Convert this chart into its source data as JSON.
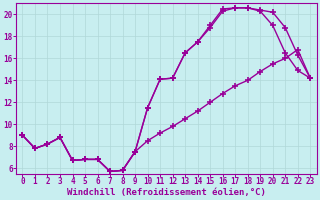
{
  "xlabel": "Windchill (Refroidissement éolien,°C)",
  "bg_color": "#c8eef0",
  "line_color": "#990099",
  "grid_color": "#b0d8d8",
  "xlim": [
    -0.5,
    23.5
  ],
  "ylim": [
    5.5,
    21.0
  ],
  "xticks": [
    0,
    1,
    2,
    3,
    4,
    5,
    6,
    7,
    8,
    9,
    10,
    11,
    12,
    13,
    14,
    15,
    16,
    17,
    18,
    19,
    20,
    21,
    22,
    23
  ],
  "yticks": [
    6,
    8,
    10,
    12,
    14,
    16,
    18,
    20
  ],
  "line1_x": [
    0,
    1,
    2,
    3,
    4,
    5,
    6,
    7,
    8,
    9,
    10,
    11,
    12,
    13,
    14,
    15,
    16,
    17,
    18,
    19,
    20,
    21,
    22,
    23
  ],
  "line1_y": [
    9.0,
    7.8,
    8.2,
    8.8,
    6.7,
    6.8,
    6.8,
    5.7,
    5.8,
    7.5,
    11.5,
    14.1,
    14.2,
    16.5,
    17.5,
    18.8,
    20.3,
    20.6,
    20.6,
    20.3,
    19.0,
    16.5,
    14.9,
    14.2
  ],
  "line2_x": [
    0,
    1,
    2,
    3,
    4,
    5,
    6,
    7,
    8,
    9,
    10,
    11,
    12,
    13,
    14,
    15,
    16,
    17,
    18,
    19,
    20,
    21,
    22,
    23
  ],
  "line2_y": [
    9.0,
    7.8,
    8.2,
    8.8,
    6.7,
    6.8,
    6.8,
    5.7,
    5.8,
    7.5,
    11.5,
    14.1,
    14.2,
    16.5,
    17.5,
    19.0,
    20.5,
    20.6,
    20.6,
    20.4,
    20.2,
    18.8,
    16.3,
    14.2
  ],
  "line3_x": [
    0,
    1,
    2,
    3,
    4,
    5,
    6,
    7,
    8,
    9,
    10,
    11,
    12,
    13,
    14,
    15,
    16,
    17,
    18,
    19,
    20,
    21,
    22,
    23
  ],
  "line3_y": [
    9.0,
    7.8,
    8.2,
    8.8,
    6.7,
    6.8,
    6.8,
    5.7,
    5.8,
    7.5,
    8.5,
    9.2,
    9.8,
    10.5,
    11.2,
    12.0,
    12.8,
    13.5,
    14.0,
    14.8,
    15.5,
    16.0,
    16.8,
    14.2
  ],
  "marker": "+",
  "markersize": 4,
  "markeredgewidth": 1.2,
  "linewidth": 1.0,
  "xlabel_fontsize": 6.5,
  "tick_fontsize": 5.5
}
